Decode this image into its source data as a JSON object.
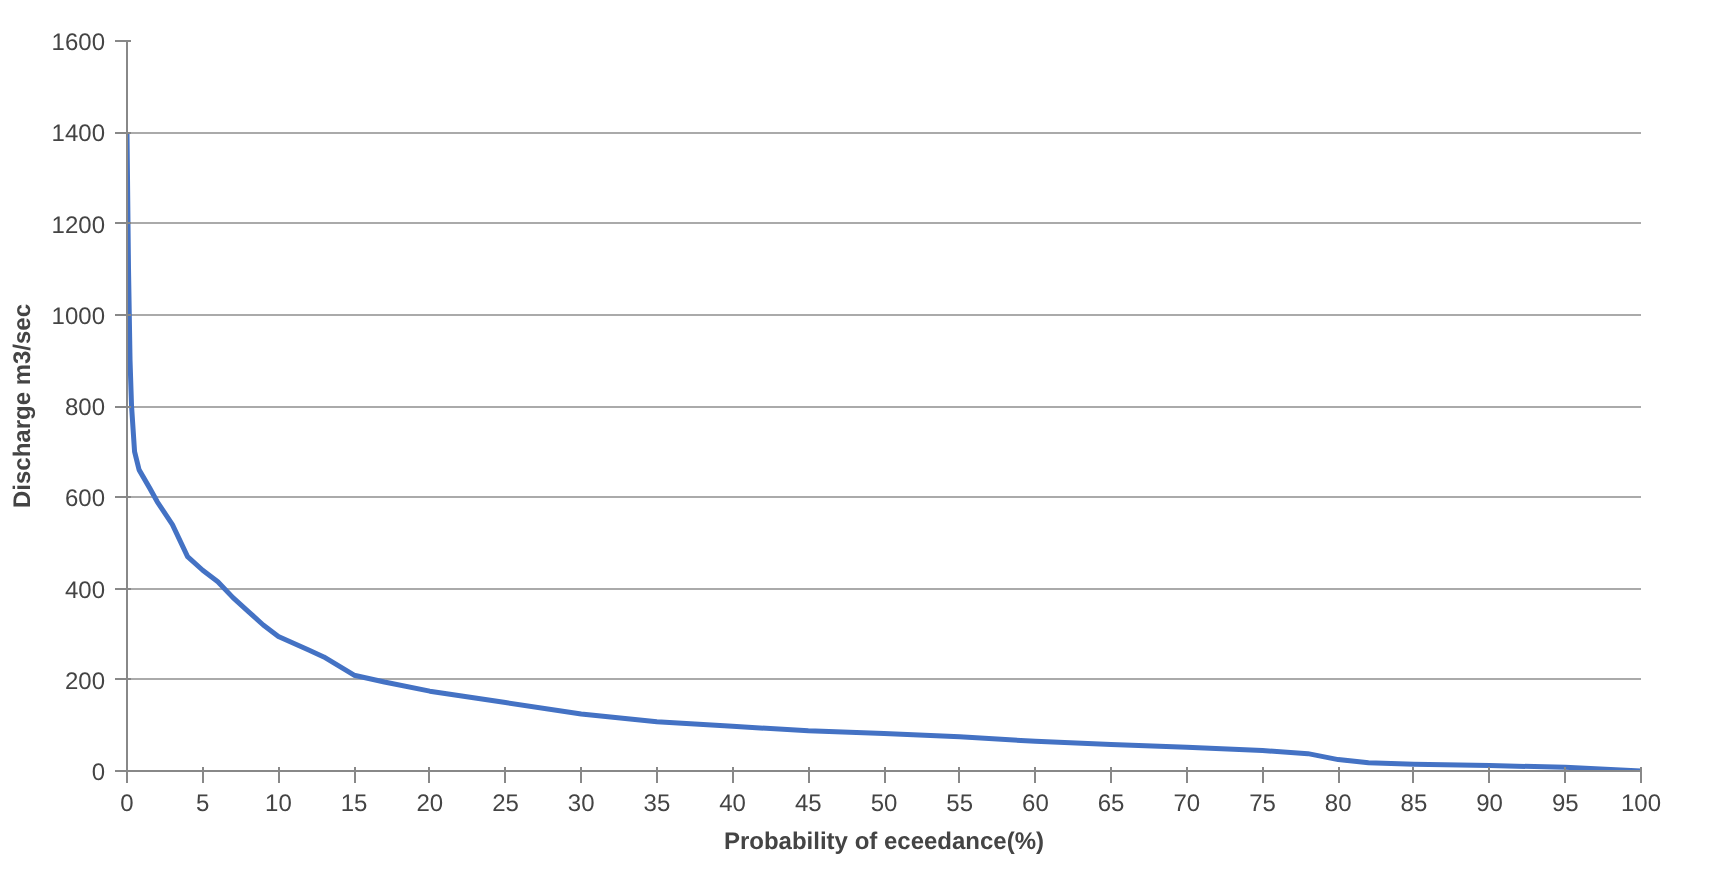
{
  "chart_data": {
    "type": "line",
    "xlabel": "Probability of eceedance(%)",
    "ylabel": "Discharge m3/sec",
    "series": [
      {
        "color": "#4472c4",
        "x": [
          0,
          0.1,
          0.2,
          0.3,
          0.5,
          0.8,
          1.5,
          2,
          3,
          4,
          5,
          6,
          7,
          8,
          9,
          10,
          12,
          13,
          15,
          17,
          20,
          25,
          30,
          35,
          40,
          45,
          50,
          55,
          60,
          65,
          70,
          75,
          78,
          80,
          82,
          85,
          90,
          95,
          100
        ],
        "values": [
          1400,
          1100,
          900,
          800,
          700,
          660,
          620,
          590,
          540,
          470,
          440,
          415,
          380,
          350,
          320,
          295,
          265,
          250,
          210,
          195,
          175,
          150,
          125,
          108,
          98,
          88,
          82,
          75,
          65,
          58,
          52,
          45,
          38,
          25,
          18,
          15,
          12,
          8,
          0
        ]
      }
    ],
    "xlim": [
      0,
      100
    ],
    "ylim": [
      0,
      1600
    ],
    "xticks": [
      0,
      5,
      10,
      15,
      20,
      25,
      30,
      35,
      40,
      45,
      50,
      55,
      60,
      65,
      70,
      75,
      80,
      85,
      90,
      95,
      100
    ],
    "yticks": [
      0,
      200,
      400,
      600,
      800,
      1000,
      1200,
      1400,
      1600
    ],
    "grid": "y",
    "line_style": "solid"
  }
}
